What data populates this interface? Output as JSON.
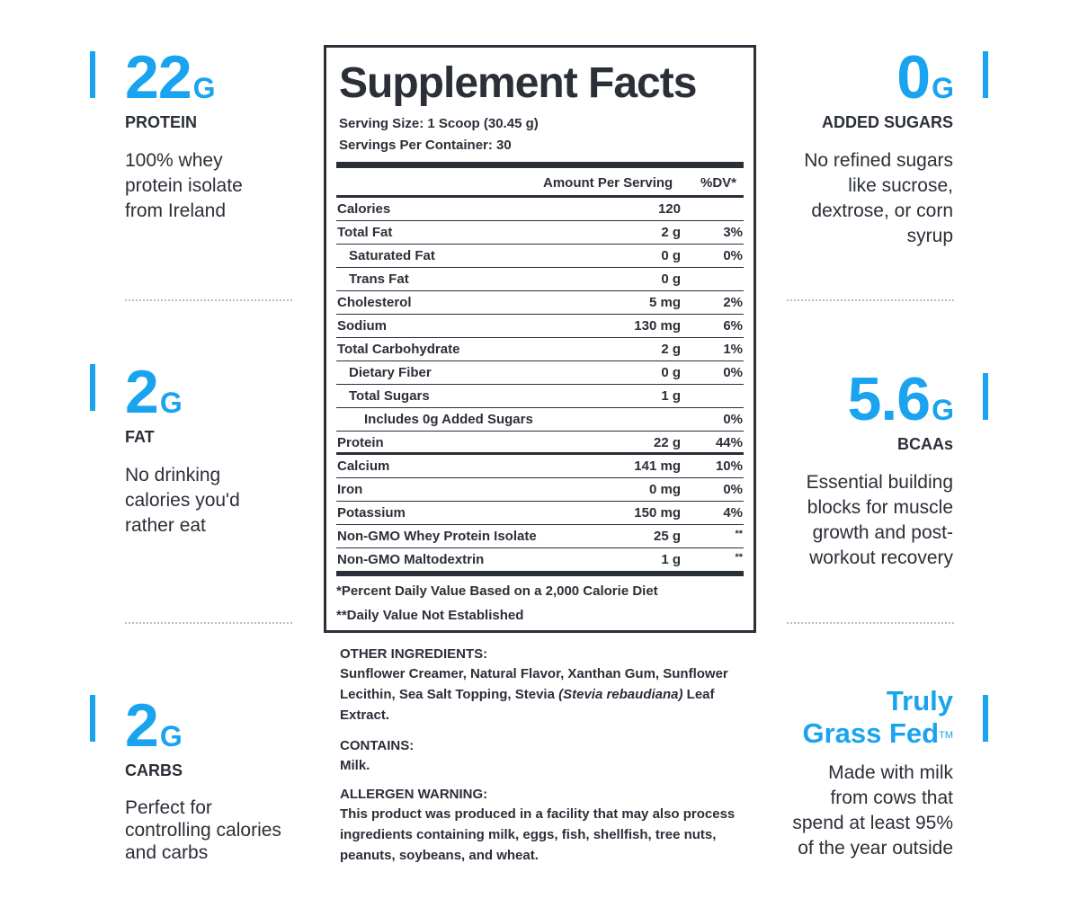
{
  "left_stats": [
    {
      "value": "22",
      "unit": "G",
      "label": "PROTEIN",
      "desc": [
        "100% whey",
        "protein isolate",
        "from Ireland"
      ]
    },
    {
      "value": "2",
      "unit": "G",
      "label": "FAT",
      "desc": [
        "No drinking",
        "calories you'd",
        "rather eat"
      ]
    },
    {
      "value": "2",
      "unit": "G",
      "label": "CARBS",
      "desc": [
        "Perfect for",
        "controlling calories",
        "and carbs"
      ]
    }
  ],
  "right_stats": [
    {
      "value": "0",
      "unit": "G",
      "label": "ADDED SUGARS",
      "desc": [
        "No refined sugars",
        "like sucrose,",
        "dextrose, or corn",
        "syrup"
      ]
    },
    {
      "value": "5.6",
      "unit": "G",
      "label": "BCAAs",
      "desc": [
        "Essential building",
        "blocks for muscle",
        "growth and post-",
        "workout recovery"
      ]
    }
  ],
  "grass_fed": {
    "line1": "Truly",
    "line2": "Grass Fed",
    "tm": "TM",
    "desc": [
      "Made with milk",
      "from cows that",
      "spend at least 95%",
      "of the year outside"
    ]
  },
  "facts": {
    "title": "Supplement Facts",
    "serving_size": "Serving Size: 1 Scoop (30.45 g)",
    "servings_per_container": "Servings Per Container: 30",
    "header_amount": "Amount Per Serving",
    "header_dv": "%DV*",
    "rows": [
      {
        "name": "Calories",
        "amount": "120",
        "dv": "",
        "indent": 0
      },
      {
        "name": "Total Fat",
        "amount": "2 g",
        "dv": "3%",
        "indent": 0
      },
      {
        "name": "Saturated Fat",
        "amount": "0 g",
        "dv": "0%",
        "indent": 1
      },
      {
        "name": "Trans Fat",
        "amount": "0 g",
        "dv": "",
        "indent": 1
      },
      {
        "name": "Cholesterol",
        "amount": "5 mg",
        "dv": "2%",
        "indent": 0
      },
      {
        "name": "Sodium",
        "amount": "130 mg",
        "dv": "6%",
        "indent": 0
      },
      {
        "name": "Total Carbohydrate",
        "amount": "2 g",
        "dv": "1%",
        "indent": 0
      },
      {
        "name": "Dietary Fiber",
        "amount": "0 g",
        "dv": "0%",
        "indent": 1
      },
      {
        "name": "Total Sugars",
        "amount": "1 g",
        "dv": "",
        "indent": 1
      },
      {
        "name": "Includes 0g Added Sugars",
        "amount": "",
        "dv": "0%",
        "indent": 2
      },
      {
        "name": "Protein",
        "amount": "22 g",
        "dv": "44%",
        "indent": 0
      },
      {
        "name": "Calcium",
        "amount": "141 mg",
        "dv": "10%",
        "indent": 0
      },
      {
        "name": "Iron",
        "amount": "0 mg",
        "dv": "0%",
        "indent": 0
      },
      {
        "name": "Potassium",
        "amount": "150 mg",
        "dv": "4%",
        "indent": 0
      },
      {
        "name": "Non-GMO Whey Protein Isolate",
        "amount": "25 g",
        "dv": "**",
        "indent": 0
      },
      {
        "name": "Non-GMO Maltodextrin",
        "amount": "1 g",
        "dv": "**",
        "indent": 0
      }
    ],
    "footnote1": "*Percent Daily Value Based on a 2,000 Calorie Diet",
    "footnote2": "**Daily Value Not Established"
  },
  "ingredients": {
    "other_head": "OTHER INGREDIENTS:",
    "other_a": "Sunflower Creamer, Natural Flavor, Xanthan Gum, Sunflower Lecithin, Sea Salt Topping, Stevia ",
    "other_italic": "(Stevia rebaudiana)",
    "other_b": " Leaf Extract.",
    "contains_head": "CONTAINS:",
    "contains": "Milk.",
    "allergen_head": "ALLERGEN WARNING:",
    "allergen": "This product was produced in a facility that may also process ingredients containing milk, eggs, fish, shellfish, tree nuts, peanuts, soybeans, and wheat."
  },
  "colors": {
    "accent": "#1aa3ee",
    "text": "#2b2f38",
    "divider": "#bcbcbc"
  }
}
